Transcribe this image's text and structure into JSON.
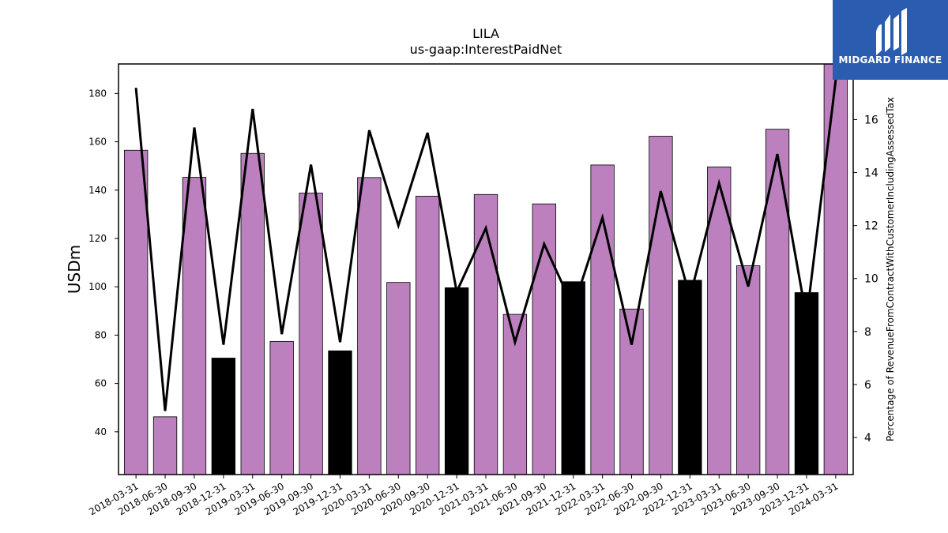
{
  "chart_data": {
    "type": "bar",
    "title": "LILA",
    "subtitle": "us-gaap:InterestPaidNet",
    "ylabel": "USDm",
    "y2label": "Percentage of RevenueFromContractWithCustomerIncludingAssessedTax",
    "categories": [
      "2018-03-31",
      "2018-06-30",
      "2018-09-30",
      "2018-12-31",
      "2019-03-31",
      "2019-06-30",
      "2019-09-30",
      "2019-12-31",
      "2020-03-31",
      "2020-06-30",
      "2020-09-30",
      "2020-12-31",
      "2021-03-31",
      "2021-06-30",
      "2021-09-30",
      "2021-12-31",
      "2022-03-31",
      "2022-06-30",
      "2022-09-30",
      "2022-12-31",
      "2023-03-31",
      "2023-06-30",
      "2023-09-30",
      "2023-12-31",
      "2024-03-31"
    ],
    "series": [
      {
        "type": "bar",
        "axis": "left",
        "values": [
          156.5,
          46.2,
          145.3,
          70.5,
          155.2,
          77.4,
          138.8,
          73.5,
          145.2,
          101.8,
          137.5,
          99.6,
          138.2,
          88.6,
          134.3,
          102.1,
          150.4,
          90.8,
          162.3,
          102.7,
          149.6,
          108.7,
          165.2,
          97.6,
          193.0
        ],
        "colors": [
          "#bb80bd",
          "#bb80bd",
          "#bb80bd",
          "#000000",
          "#bb80bd",
          "#bb80bd",
          "#bb80bd",
          "#000000",
          "#bb80bd",
          "#bb80bd",
          "#bb80bd",
          "#000000",
          "#bb80bd",
          "#bb80bd",
          "#bb80bd",
          "#000000",
          "#bb80bd",
          "#bb80bd",
          "#bb80bd",
          "#000000",
          "#bb80bd",
          "#bb80bd",
          "#bb80bd",
          "#000000",
          "#bb80bd"
        ]
      },
      {
        "type": "line",
        "axis": "right",
        "color": "#000000",
        "values": [
          17.2,
          5.0,
          15.7,
          7.5,
          16.4,
          7.9,
          14.3,
          7.6,
          15.6,
          12.0,
          15.5,
          9.5,
          11.9,
          7.6,
          11.3,
          8.9,
          12.3,
          7.5,
          13.3,
          9.3,
          13.6,
          9.7,
          14.7,
          8.5,
          17.5
        ]
      }
    ],
    "ylim": [
      22.3,
      192.2
    ],
    "y2lim": [
      2.6,
      18.1
    ],
    "yticks": [
      40,
      60,
      80,
      100,
      120,
      140,
      160,
      180
    ],
    "y2ticks": [
      4,
      6,
      8,
      10,
      12,
      14,
      16
    ],
    "grid": false
  },
  "logo": {
    "text": "MIDGARD FINANCE",
    "color": "#2a5db0"
  }
}
